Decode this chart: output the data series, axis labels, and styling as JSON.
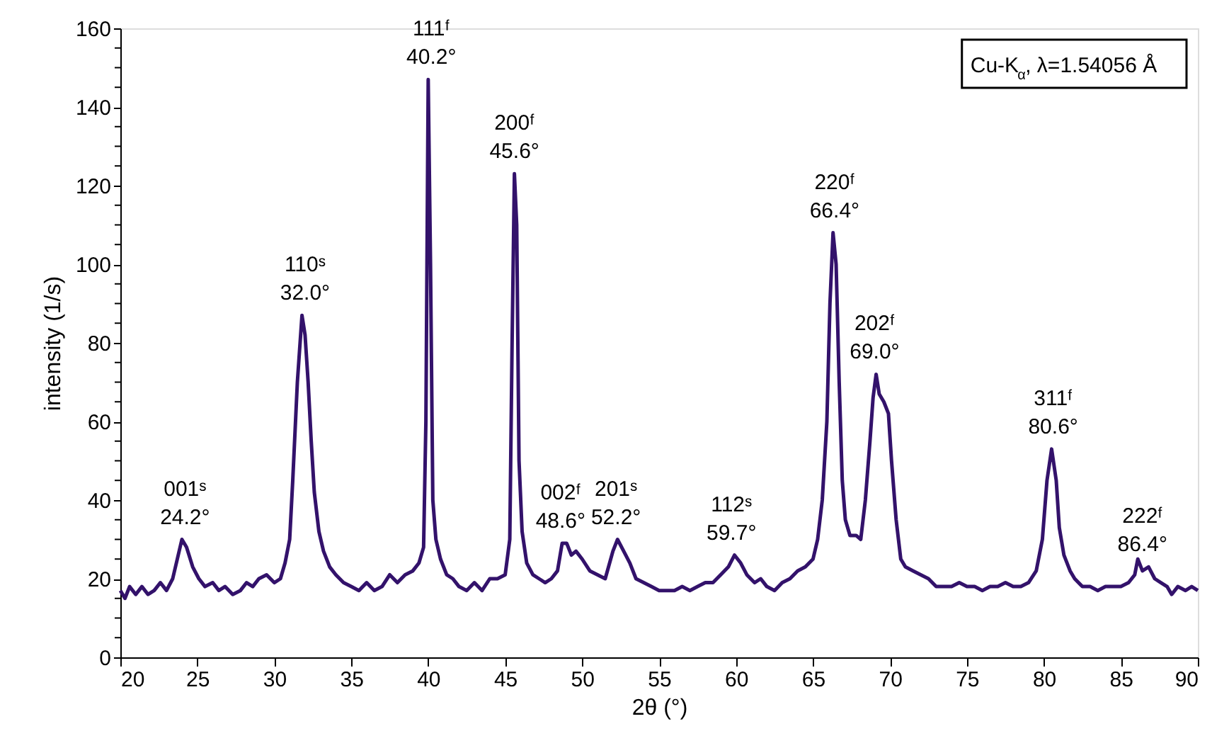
{
  "chart_data": {
    "type": "line",
    "xlabel": "2θ (°)",
    "ylabel": "intensity (1/s)",
    "xlim": [
      20,
      90
    ],
    "xticks": [
      20,
      25,
      30,
      35,
      40,
      45,
      50,
      55,
      60,
      65,
      70,
      75,
      80,
      85,
      90
    ],
    "ylim": [
      0,
      160
    ],
    "yticks": [
      0,
      {
        "value": 5,
        "label": null
      },
      {
        "value": 10,
        "label": null
      },
      {
        "value": 15,
        "label": null
      },
      20,
      {
        "value": 25,
        "label": null
      },
      {
        "value": 30,
        "label": null
      },
      {
        "value": 35,
        "label": null
      },
      40,
      {
        "value": 45,
        "label": null
      },
      {
        "value": 50,
        "label": null
      },
      {
        "value": 55,
        "label": null
      },
      60,
      {
        "value": 65,
        "label": null
      },
      {
        "value": 70,
        "label": null
      },
      {
        "value": 75,
        "label": null
      },
      80,
      {
        "value": 85,
        "label": null
      },
      {
        "value": 90,
        "label": null
      },
      {
        "value": 95,
        "label": null
      },
      100,
      {
        "value": 105,
        "label": null
      },
      {
        "value": 110,
        "label": null
      },
      {
        "value": 115,
        "label": null
      },
      120,
      {
        "value": 125,
        "label": null
      },
      {
        "value": 130,
        "label": null
      },
      {
        "value": 135,
        "label": null
      },
      140,
      {
        "value": 145,
        "label": null
      },
      {
        "value": 150,
        "label": null
      },
      {
        "value": 155,
        "label": null
      },
      160
    ],
    "grid": false,
    "marker": "none",
    "line_style": "solid",
    "series": [
      {
        "color": "#33126b",
        "x": [
          20,
          20.3,
          20.6,
          21,
          21.4,
          21.8,
          22.2,
          22.6,
          23.0,
          23.4,
          23.7,
          24.0,
          24.3,
          24.7,
          25.1,
          25.5,
          26,
          26.4,
          26.8,
          27.3,
          27.8,
          28.2,
          28.6,
          29,
          29.5,
          30,
          30.4,
          30.7,
          31,
          31.2,
          31.5,
          31.8,
          32.0,
          32.2,
          32.4,
          32.6,
          32.9,
          33.2,
          33.6,
          34,
          34.5,
          35,
          35.5,
          36,
          36.5,
          37,
          37.5,
          38,
          38.5,
          39,
          39.4,
          39.7,
          39.85,
          40.0,
          40.15,
          40.3,
          40.5,
          40.8,
          41.2,
          41.6,
          42,
          42.5,
          43,
          43.5,
          44,
          44.5,
          45,
          45.3,
          45.45,
          45.6,
          45.75,
          45.9,
          46.1,
          46.4,
          46.8,
          47.2,
          47.6,
          48,
          48.4,
          48.7,
          49.0,
          49.3,
          49.6,
          50,
          50.5,
          51,
          51.5,
          52,
          52.3,
          52.7,
          53.1,
          53.5,
          54,
          54.5,
          55,
          55.5,
          56,
          56.5,
          57,
          57.5,
          58,
          58.5,
          59,
          59.5,
          59.9,
          60.3,
          60.7,
          61.2,
          61.6,
          62,
          62.5,
          63,
          63.5,
          64,
          64.5,
          65,
          65.3,
          65.6,
          65.9,
          66.1,
          66.3,
          66.5,
          66.7,
          66.9,
          67.1,
          67.4,
          67.8,
          68.1,
          68.4,
          68.7,
          68.9,
          69.1,
          69.3,
          69.6,
          69.9,
          70.1,
          70.4,
          70.7,
          71,
          71.5,
          72,
          72.5,
          73,
          73.5,
          74,
          74.5,
          75,
          75.5,
          76,
          76.5,
          77,
          77.5,
          78,
          78.5,
          79,
          79.5,
          79.9,
          80.2,
          80.5,
          80.8,
          81,
          81.3,
          81.7,
          82,
          82.5,
          83,
          83.5,
          84,
          84.5,
          85,
          85.5,
          85.9,
          86.1,
          86.4,
          86.8,
          87.2,
          87.6,
          88,
          88.3,
          88.7,
          89.2,
          89.6,
          90
        ],
        "values": [
          17,
          15,
          18,
          16,
          18,
          16,
          17,
          19,
          17,
          20,
          25,
          30,
          28,
          23,
          20,
          18,
          19,
          17,
          18,
          16,
          17,
          19,
          18,
          20,
          21,
          19,
          20,
          24,
          30,
          45,
          70,
          87,
          82,
          70,
          55,
          42,
          32,
          27,
          23,
          21,
          19,
          18,
          17,
          19,
          17,
          18,
          21,
          19,
          21,
          22,
          24,
          28,
          60,
          147,
          100,
          40,
          30,
          25,
          21,
          20,
          18,
          17,
          19,
          17,
          20,
          20,
          21,
          30,
          80,
          123,
          110,
          50,
          32,
          24,
          21,
          20,
          19,
          20,
          22,
          29,
          29,
          26,
          27,
          25,
          22,
          21,
          20,
          27,
          30,
          27,
          24,
          20,
          19,
          18,
          17,
          17,
          17,
          18,
          17,
          18,
          19,
          19,
          21,
          23,
          26,
          24,
          21,
          19,
          20,
          18,
          17,
          19,
          20,
          22,
          23,
          25,
          30,
          40,
          60,
          90,
          108,
          100,
          70,
          45,
          35,
          31,
          31,
          30,
          40,
          55,
          66,
          72,
          67,
          65,
          62,
          50,
          35,
          25,
          23,
          22,
          21,
          20,
          18,
          18,
          18,
          19,
          18,
          18,
          17,
          18,
          18,
          19,
          18,
          18,
          19,
          22,
          30,
          45,
          53,
          45,
          33,
          26,
          22,
          20,
          18,
          18,
          17,
          18,
          18,
          18,
          19,
          21,
          25,
          22,
          23,
          20,
          19,
          18,
          16,
          18,
          17,
          18,
          17
        ]
      }
    ],
    "annotations": [
      {
        "text": "001ˢ\n24.2°",
        "x": 24.2,
        "y": 30
      },
      {
        "text": "110ˢ\n32.0°",
        "x": 32.0,
        "y": 87
      },
      {
        "text": "111ᶠ\n40.2°",
        "x": 40.2,
        "y": 147
      },
      {
        "text": "200ᶠ\n45.6°",
        "x": 45.6,
        "y": 123
      },
      {
        "text": "002ᶠ\n48.6°",
        "x": 48.6,
        "y": 29
      },
      {
        "text": "201ˢ\n52.2°",
        "x": 52.2,
        "y": 30
      },
      {
        "text": "112ˢ\n59.7°",
        "x": 59.7,
        "y": 26
      },
      {
        "text": "220ᶠ\n66.4°",
        "x": 66.4,
        "y": 108
      },
      {
        "text": "202ᶠ\n69.0°",
        "x": 69.0,
        "y": 72
      },
      {
        "text": "311ᶠ\n80.6°",
        "x": 80.6,
        "y": 53
      },
      {
        "text": "222ᶠ\n86.4°",
        "x": 86.4,
        "y": 23
      },
      "Cu-K$_{α}$, λ=1.54056 Å"
    ]
  }
}
